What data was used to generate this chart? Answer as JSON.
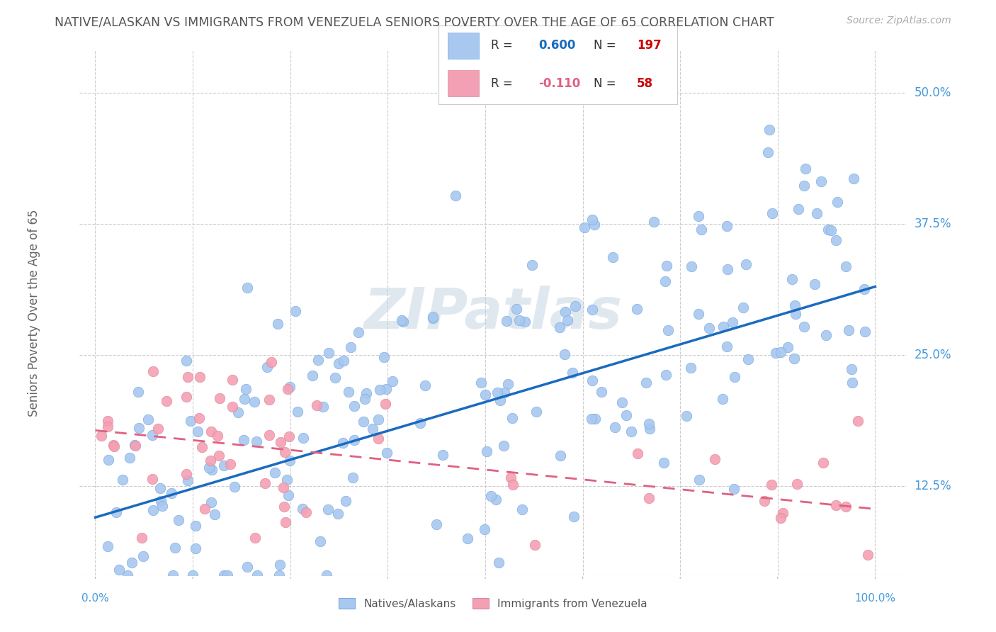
{
  "title": "NATIVE/ALASKAN VS IMMIGRANTS FROM VENEZUELA SENIORS POVERTY OVER THE AGE OF 65 CORRELATION CHART",
  "source": "Source: ZipAtlas.com",
  "ylabel": "Seniors Poverty Over the Age of 65",
  "y_tick_labels": [
    "12.5%",
    "25.0%",
    "37.5%",
    "50.0%"
  ],
  "y_ticks": [
    0.125,
    0.25,
    0.375,
    0.5
  ],
  "ylim": [
    0.04,
    0.54
  ],
  "xlim": [
    -0.02,
    1.04
  ],
  "blue_R": 0.6,
  "blue_N": 197,
  "pink_R": -0.11,
  "pink_N": 58,
  "blue_color": "#a8c8f0",
  "pink_color": "#f4a0b4",
  "blue_edge_color": "#7aaadd",
  "pink_edge_color": "#dd8899",
  "blue_line_color": "#1a6bbf",
  "pink_line_color": "#e06080",
  "watermark": "ZIPatlas",
  "background_color": "#ffffff",
  "grid_color": "#cccccc",
  "title_color": "#555555",
  "axis_label_color": "#4499dd",
  "slope_blue": 0.22,
  "intercept_blue": 0.095,
  "slope_pink": -0.075,
  "intercept_pink": 0.178,
  "legend_r_blue": "0.600",
  "legend_n_blue": "197",
  "legend_r_pink": "-0.110",
  "legend_n_pink": "58",
  "legend_label_blue": "Natives/Alaskans",
  "legend_label_pink": "Immigrants from Venezuela"
}
